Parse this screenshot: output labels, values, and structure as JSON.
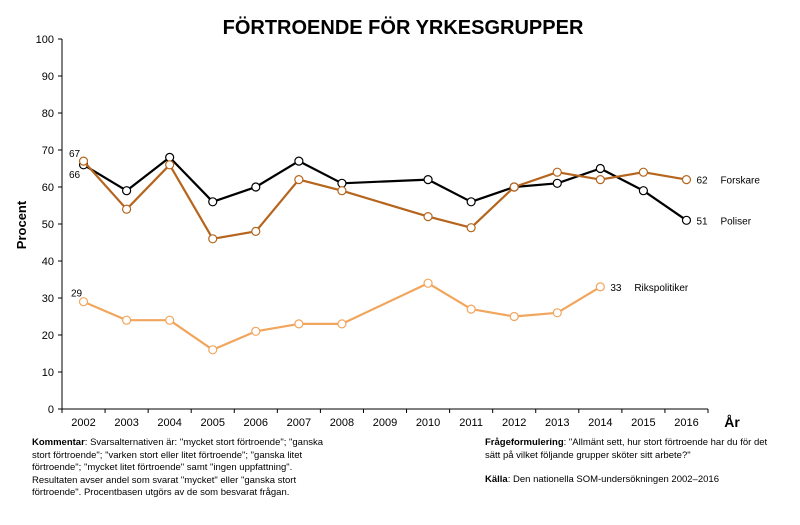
{
  "chart_data": {
    "type": "line",
    "title": "FÖRTROENDE FÖR YRKESGRUPPER",
    "ylabel": "Procent",
    "xlabel": "År",
    "ylim": [
      0,
      100
    ],
    "yticks": [
      0,
      10,
      20,
      30,
      40,
      50,
      60,
      70,
      80,
      90,
      100
    ],
    "x": [
      2002,
      2003,
      2004,
      2005,
      2006,
      2007,
      2008,
      2009,
      2010,
      2011,
      2012,
      2013,
      2014,
      2015,
      2016
    ],
    "series": [
      {
        "name": "Poliser",
        "color": "#000000",
        "points": [
          [
            2002,
            66
          ],
          [
            2003,
            59
          ],
          [
            2004,
            68
          ],
          [
            2005,
            56
          ],
          [
            2006,
            60
          ],
          [
            2007,
            67
          ],
          [
            2008,
            61
          ],
          [
            2010,
            62
          ],
          [
            2011,
            56
          ],
          [
            2012,
            60
          ],
          [
            2013,
            61
          ],
          [
            2014,
            65
          ],
          [
            2015,
            59
          ],
          [
            2016,
            51
          ]
        ],
        "start_label": "66",
        "end_label": "51"
      },
      {
        "name": "Forskare",
        "color": "#b5651d",
        "points": [
          [
            2002,
            67
          ],
          [
            2003,
            54
          ],
          [
            2004,
            66
          ],
          [
            2005,
            46
          ],
          [
            2006,
            48
          ],
          [
            2007,
            62
          ],
          [
            2008,
            59
          ],
          [
            2010,
            52
          ],
          [
            2011,
            49
          ],
          [
            2012,
            60
          ],
          [
            2013,
            64
          ],
          [
            2014,
            62
          ],
          [
            2015,
            64
          ],
          [
            2016,
            62
          ]
        ],
        "start_label": "67",
        "end_label": "62"
      },
      {
        "name": "Rikspolitiker",
        "color": "#f2a55c",
        "points": [
          [
            2002,
            29
          ],
          [
            2003,
            24
          ],
          [
            2004,
            24
          ],
          [
            2005,
            16
          ],
          [
            2006,
            21
          ],
          [
            2007,
            23
          ],
          [
            2008,
            23
          ],
          [
            2010,
            34
          ],
          [
            2011,
            27
          ],
          [
            2012,
            25
          ],
          [
            2013,
            26
          ],
          [
            2014,
            33
          ]
        ],
        "start_label": "29",
        "end_label": "33"
      }
    ],
    "grid": false,
    "legend": "inline-right"
  },
  "notes": {
    "comment_label": "Kommentar",
    "comment_text": ": Svarsalternativen är: \"mycket stort förtroende\"; \"ganska stort förtroende\"; \"varken stort eller litet förtroende\"; \"ganska litet förtroende\"; \"mycket litet förtroende\" samt \"ingen uppfattning\". Resultaten avser andel som svarat \"mycket\" eller \"ganska stort förtroende\". Procentbasen utgörs av de som besvarat frågan.",
    "question_label": "Frågeformulering",
    "question_text": ": \"Allmänt sett, hur stort förtroende har du för det sätt på vilket följande grupper sköter sitt arbete?\"",
    "source_label": "Källa",
    "source_text": ": Den nationella SOM-undersökningen 2002–2016"
  }
}
